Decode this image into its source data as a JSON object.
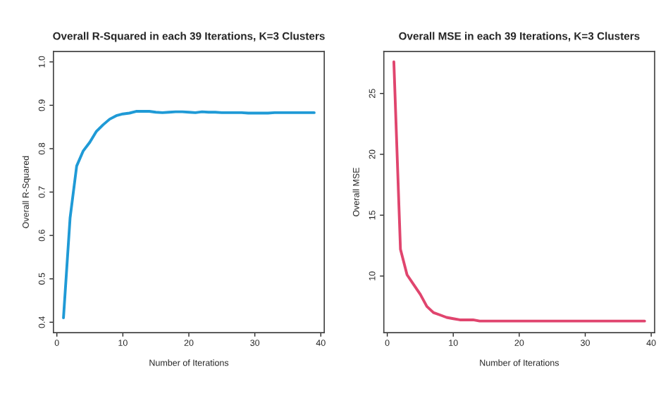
{
  "chart_data": [
    {
      "type": "line",
      "title": "Overall R-Squared in each 39 Iterations, K=3 Clusters",
      "xlabel": "Number of Iterations",
      "ylabel": "Overall R-Squared",
      "xlim": [
        -0.52,
        40.52
      ],
      "xticks": [
        0,
        10,
        20,
        30,
        40
      ],
      "ylim": [
        0.376,
        1.024
      ],
      "yticks": [
        0.4,
        0.5,
        0.6,
        0.7,
        0.8,
        0.9,
        {
          "value": 1,
          "label": "1.0"
        }
      ],
      "grid": false,
      "x": [
        1,
        2,
        3,
        4,
        5,
        6,
        7,
        8,
        9,
        10,
        11,
        12,
        13,
        14,
        15,
        16,
        17,
        18,
        19,
        20,
        21,
        22,
        23,
        24,
        25,
        26,
        27,
        28,
        29,
        30,
        31,
        32,
        33,
        34,
        35,
        36,
        37,
        38,
        39
      ],
      "series": [
        {
          "color": "#1f9ad6",
          "values": [
            0.41,
            0.64,
            0.76,
            0.795,
            0.815,
            0.84,
            0.855,
            0.868,
            0.876,
            0.88,
            0.882,
            0.886,
            0.886,
            0.886,
            0.884,
            0.883,
            0.884,
            0.885,
            0.885,
            0.884,
            0.883,
            0.885,
            0.884,
            0.884,
            0.883,
            0.883,
            0.883,
            0.883,
            0.882,
            0.882,
            0.882,
            0.882,
            0.883,
            0.883,
            0.883,
            0.883,
            0.883,
            0.883,
            0.883
          ]
        }
      ]
    },
    {
      "type": "line",
      "title": "Overall MSE in each 39 Iterations, K=3 Clusters",
      "xlabel": "Number of Iterations",
      "ylabel": "Overall MSE",
      "xlim": [
        -0.52,
        40.52
      ],
      "xticks": [
        0,
        10,
        20,
        30,
        40
      ],
      "ylim": [
        5.35,
        28.45
      ],
      "yticks": [
        10,
        15,
        20,
        25
      ],
      "grid": false,
      "x": [
        1,
        2,
        3,
        4,
        5,
        6,
        7,
        8,
        9,
        10,
        11,
        12,
        13,
        14,
        15,
        16,
        17,
        18,
        19,
        20,
        21,
        22,
        23,
        24,
        25,
        26,
        27,
        28,
        29,
        30,
        31,
        32,
        33,
        34,
        35,
        36,
        37,
        38,
        39
      ],
      "series": [
        {
          "color": "#e0456e",
          "values": [
            27.6,
            12.2,
            10.1,
            9.3,
            8.5,
            7.5,
            7.0,
            6.8,
            6.6,
            6.5,
            6.4,
            6.4,
            6.4,
            6.3,
            6.3,
            6.3,
            6.3,
            6.3,
            6.3,
            6.3,
            6.3,
            6.3,
            6.3,
            6.3,
            6.3,
            6.3,
            6.3,
            6.3,
            6.3,
            6.3,
            6.3,
            6.3,
            6.3,
            6.3,
            6.3,
            6.3,
            6.3,
            6.3,
            6.3
          ]
        }
      ]
    }
  ]
}
